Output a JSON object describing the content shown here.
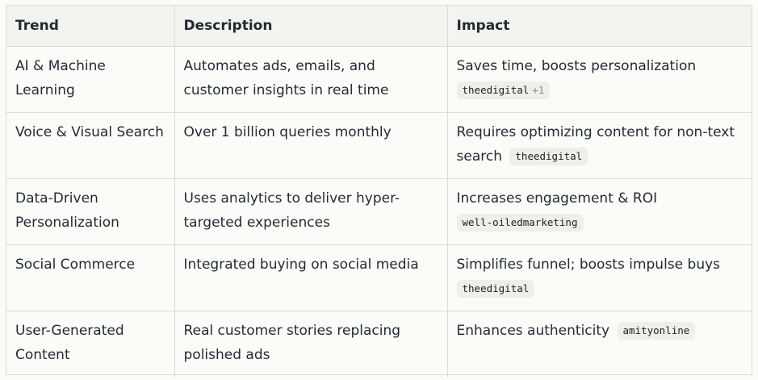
{
  "headers": [
    "Trend",
    "Description",
    "Impact"
  ],
  "rows": [
    {
      "trend": "AI & Machine Learning",
      "description": "Automates ads, emails, and customer insights in real time",
      "impact": "Saves time, boosts personalization",
      "source": "theedigital",
      "source_more": "+1"
    },
    {
      "trend": "Voice & Visual Search",
      "description": "Over 1 billion queries monthly",
      "impact": "Requires optimizing content for non-text search",
      "source": "theedigital"
    },
    {
      "trend": "Data-Driven Personalization",
      "description": "Uses analytics to deliver hyper-targeted experiences",
      "impact": "Increases engagement & ROI",
      "source": "well-oiledmarketing"
    },
    {
      "trend": "Social Commerce",
      "description": "Integrated buying on social media",
      "impact": "Simplifies funnel; boosts impulse buys",
      "source": "theedigital"
    },
    {
      "trend": "User-Generated Content",
      "description": "Real customer stories replacing polished ads",
      "impact": "Enhances authenticity",
      "source": "amityonline"
    }
  ]
}
